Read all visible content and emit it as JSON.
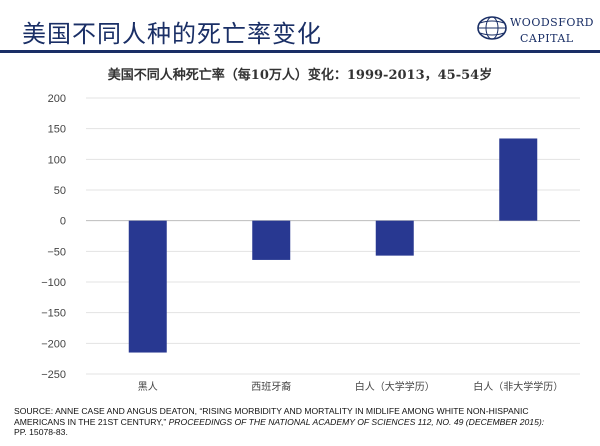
{
  "header": {
    "title": "美国不同人种的死亡率变化"
  },
  "logo": {
    "name": "WOODSFORD",
    "sub": "CAPITAL",
    "colors": {
      "brand": "#1a2f66"
    }
  },
  "chart_data": {
    "type": "bar",
    "title": "美国不同人种死亡率（每10万人）变化：1999-2013，45-54岁",
    "categories": [
      "黑人",
      "西班牙裔",
      "白人（大学学历）",
      "白人（非大学学历）"
    ],
    "values": [
      -215,
      -64,
      -57,
      134
    ],
    "ylim": [
      -250,
      200
    ],
    "yticks": [
      200,
      150,
      100,
      50,
      0,
      -50,
      -100,
      -150,
      -200,
      -250
    ],
    "ytick_labels": [
      "200",
      "150",
      "100",
      "50",
      "0",
      "−50",
      "−100",
      "−150",
      "−200",
      "−250"
    ],
    "grid": true,
    "bar_color": "#283891",
    "xlabel": "",
    "ylabel": ""
  },
  "source": {
    "line1": "SOURCE: ANNE CASE AND ANGUS DEATON, “RISING MORBIDITY AND MORTALITY IN MIDLIFE AMONG WHITE NON-HISPANIC",
    "line2_a": "AMERICANS IN THE 21ST CENTURY,”",
    "line2_b": " PROCEEDINGS OF THE NATIONAL ACADEMY OF SCIENCES 112, NO. 49 (DECEMBER 2015):",
    "line3": "PP. 15078-83."
  }
}
